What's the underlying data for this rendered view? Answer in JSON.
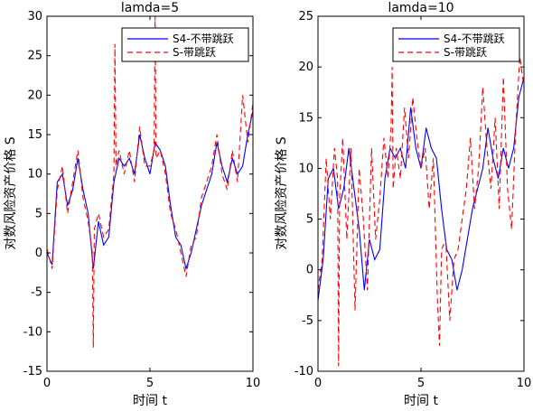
{
  "chart_data": [
    {
      "type": "line",
      "title": "lamda=5",
      "xlabel": "时间 t",
      "ylabel": "对数风险资产价格 S",
      "xlim": [
        0,
        10
      ],
      "ylim": [
        -15,
        30
      ],
      "xticks": [
        0,
        5,
        10
      ],
      "yticks": [
        -15,
        -10,
        -5,
        0,
        5,
        10,
        15,
        20,
        25,
        30
      ],
      "grid": false,
      "legend": "top-right",
      "series": [
        {
          "name": "S4-不带跳跃",
          "color": "#0000ff",
          "style": "solid",
          "x": [
            0,
            0.25,
            0.5,
            0.75,
            1.0,
            1.25,
            1.5,
            1.75,
            2.0,
            2.25,
            2.5,
            2.75,
            3.0,
            3.25,
            3.5,
            3.75,
            4.0,
            4.25,
            4.5,
            4.75,
            5.0,
            5.25,
            5.5,
            5.75,
            6.0,
            6.25,
            6.5,
            6.75,
            7.0,
            7.25,
            7.5,
            7.75,
            8.0,
            8.25,
            8.5,
            8.75,
            9.0,
            9.25,
            9.5,
            9.75,
            10.0
          ],
          "values": [
            0,
            -1.5,
            9,
            10,
            6,
            8,
            12,
            8,
            5,
            -2,
            4,
            1,
            2,
            9,
            12,
            11,
            12,
            10,
            15,
            12,
            10,
            14,
            13,
            11,
            6,
            2,
            1,
            -2,
            0,
            3,
            6,
            8,
            10,
            14,
            11,
            9,
            12,
            10,
            11,
            15,
            18
          ]
        },
        {
          "name": "S-带跳跃",
          "color": "#ff0000",
          "style": "dashed",
          "x": [
            0,
            0.25,
            0.5,
            0.75,
            1.0,
            1.25,
            1.5,
            1.75,
            2.0,
            2.2,
            2.25,
            2.3,
            2.5,
            2.75,
            3.0,
            3.25,
            3.3,
            3.35,
            3.5,
            3.75,
            4.0,
            4.25,
            4.5,
            4.75,
            5.0,
            5.2,
            5.25,
            5.3,
            5.5,
            5.75,
            6.0,
            6.25,
            6.5,
            6.75,
            7.0,
            7.25,
            7.5,
            7.75,
            8.0,
            8.25,
            8.5,
            8.75,
            9.0,
            9.25,
            9.5,
            9.75,
            10.0
          ],
          "values": [
            0.5,
            -2,
            8,
            11,
            5,
            9,
            13,
            7,
            4,
            0,
            -12,
            3,
            5,
            2,
            3,
            10,
            26.5,
            11,
            13,
            10,
            13,
            9,
            16,
            11,
            11,
            13,
            30,
            12,
            13,
            10,
            5,
            3,
            0,
            -3,
            1,
            2,
            7,
            9,
            11,
            15,
            10,
            8,
            13,
            9,
            20,
            14,
            19
          ]
        }
      ]
    },
    {
      "type": "line",
      "title": "lamda=10",
      "xlabel": "时间 t",
      "ylabel": "对数风险资产价格 S",
      "xlim": [
        0,
        10
      ],
      "ylim": [
        -10,
        25
      ],
      "xticks": [
        0,
        5,
        10
      ],
      "yticks": [
        -10,
        -5,
        0,
        5,
        10,
        15,
        20,
        25
      ],
      "grid": false,
      "legend": "top-right",
      "series": [
        {
          "name": "S4-不带跳跃",
          "color": "#0000ff",
          "style": "solid",
          "x": [
            0,
            0.25,
            0.5,
            0.75,
            1.0,
            1.25,
            1.5,
            1.75,
            2.0,
            2.25,
            2.5,
            2.75,
            3.0,
            3.25,
            3.5,
            3.75,
            4.0,
            4.25,
            4.5,
            4.75,
            5.0,
            5.25,
            5.5,
            5.75,
            6.0,
            6.25,
            6.5,
            6.75,
            7.0,
            7.25,
            7.5,
            7.75,
            8.0,
            8.25,
            8.5,
            8.75,
            9.0,
            9.25,
            9.5,
            9.75,
            10.0
          ],
          "values": [
            -3,
            1,
            9,
            10,
            6,
            8,
            12,
            8,
            4,
            -2,
            3,
            1,
            2,
            9,
            12,
            11,
            12,
            10,
            16,
            12,
            10,
            14,
            12,
            11,
            6,
            2,
            1,
            -2,
            0,
            3,
            6,
            8,
            10,
            14,
            11,
            9,
            12,
            10,
            12,
            17,
            19
          ]
        },
        {
          "name": "S-带跳跃",
          "color": "#ff0000",
          "style": "dashed",
          "x": [
            0,
            0.2,
            0.4,
            0.6,
            0.8,
            0.95,
            1.0,
            1.05,
            1.2,
            1.4,
            1.6,
            1.8,
            2.0,
            2.2,
            2.4,
            2.6,
            2.8,
            3.0,
            3.2,
            3.4,
            3.55,
            3.6,
            3.65,
            3.8,
            4.0,
            4.2,
            4.4,
            4.6,
            4.8,
            5.0,
            5.2,
            5.4,
            5.6,
            5.8,
            5.9,
            6.0,
            6.2,
            6.4,
            6.6,
            6.8,
            7.0,
            7.2,
            7.4,
            7.6,
            7.8,
            8.0,
            8.2,
            8.4,
            8.6,
            8.8,
            9.0,
            9.2,
            9.4,
            9.6,
            9.8,
            10.0
          ],
          "values": [
            -2,
            1,
            11,
            5,
            12,
            9,
            -9.5,
            7,
            13,
            3,
            12,
            -4,
            10,
            5,
            -2,
            12,
            3,
            7,
            13,
            9,
            14,
            20,
            8,
            12,
            9,
            16,
            11,
            17,
            13,
            10,
            12,
            6,
            11,
            -3,
            -7.5,
            2,
            3,
            -5,
            1,
            2,
            5,
            8,
            13,
            6,
            10,
            18,
            12,
            8,
            15,
            6,
            19,
            8,
            4,
            14,
            21,
            18
          ]
        }
      ]
    }
  ]
}
